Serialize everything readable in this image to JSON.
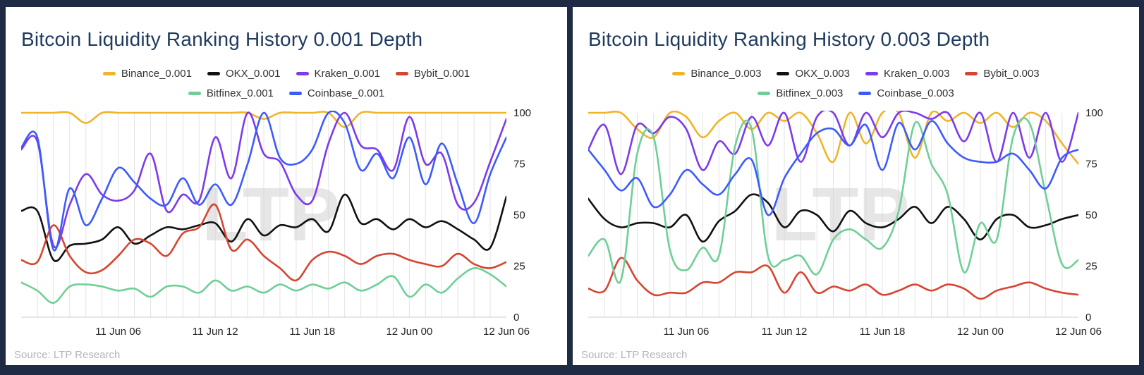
{
  "source_label": "Source: LTP Research",
  "watermark": "LTP",
  "chart_data": [
    {
      "type": "line",
      "title": "Bitcoin Liquidity Ranking History 0.001 Depth",
      "x": [
        "11 Jun 00",
        "11 Jun 01",
        "11 Jun 02",
        "11 Jun 03",
        "11 Jun 04",
        "11 Jun 05",
        "11 Jun 06",
        "11 Jun 07",
        "11 Jun 08",
        "11 Jun 09",
        "11 Jun 10",
        "11 Jun 11",
        "11 Jun 12",
        "11 Jun 13",
        "11 Jun 14",
        "11 Jun 15",
        "11 Jun 16",
        "11 Jun 17",
        "11 Jun 18",
        "11 Jun 19",
        "11 Jun 20",
        "11 Jun 21",
        "11 Jun 22",
        "11 Jun 23",
        "12 Jun 00",
        "12 Jun 01",
        "12 Jun 02",
        "12 Jun 03",
        "12 Jun 04",
        "12 Jun 05",
        "12 Jun 06"
      ],
      "x_ticks": [
        "11 Jun 06",
        "11 Jun 12",
        "11 Jun 18",
        "12 Jun 00",
        "12 Jun 06"
      ],
      "ylim": [
        0,
        100
      ],
      "y_ticks": [
        0,
        25,
        50,
        75,
        100
      ],
      "series": [
        {
          "name": "Binance_0.001",
          "color": "#f0b429",
          "values": [
            100,
            100,
            100,
            100,
            95,
            100,
            100,
            100,
            100,
            100,
            100,
            100,
            100,
            100,
            100,
            97,
            100,
            100,
            100,
            100,
            93,
            100,
            100,
            100,
            100,
            100,
            100,
            100,
            100,
            100,
            100
          ]
        },
        {
          "name": "OKX_0.001",
          "color": "#111111",
          "values": [
            52,
            52,
            28,
            35,
            36,
            38,
            44,
            36,
            40,
            44,
            43,
            45,
            46,
            37,
            48,
            40,
            45,
            44,
            48,
            42,
            60,
            46,
            48,
            43,
            48,
            44,
            47,
            43,
            38,
            34,
            59
          ]
        },
        {
          "name": "Kraken_0.001",
          "color": "#7c3aed",
          "values": [
            82,
            86,
            35,
            55,
            70,
            60,
            57,
            62,
            80,
            52,
            60,
            57,
            88,
            68,
            100,
            80,
            76,
            60,
            57,
            85,
            100,
            84,
            82,
            72,
            98,
            75,
            80,
            55,
            56,
            76,
            97
          ]
        },
        {
          "name": "Bybit_0.001",
          "color": "#d64531",
          "values": [
            28,
            27,
            45,
            30,
            22,
            23,
            30,
            38,
            36,
            30,
            41,
            44,
            55,
            33,
            38,
            30,
            24,
            18,
            28,
            32,
            30,
            26,
            30,
            31,
            28,
            26,
            25,
            31,
            26,
            24,
            27
          ]
        },
        {
          "name": "Bitfinex_0.001",
          "color": "#6fcf97",
          "values": [
            17,
            13,
            7,
            15,
            16,
            15,
            13,
            14,
            10,
            15,
            15,
            12,
            18,
            13,
            15,
            12,
            16,
            13,
            16,
            14,
            17,
            13,
            16,
            20,
            10,
            16,
            12,
            19,
            24,
            21,
            15
          ]
        },
        {
          "name": "Coinbase_0.001",
          "color": "#3b5bfd",
          "values": [
            83,
            88,
            33,
            63,
            45,
            58,
            73,
            66,
            58,
            55,
            68,
            55,
            65,
            55,
            75,
            100,
            78,
            75,
            82,
            100,
            95,
            72,
            80,
            68,
            88,
            65,
            85,
            65,
            46,
            70,
            88
          ]
        }
      ]
    },
    {
      "type": "line",
      "title": "Bitcoin Liquidity Ranking History 0.003 Depth",
      "x": [
        "11 Jun 00",
        "11 Jun 01",
        "11 Jun 02",
        "11 Jun 03",
        "11 Jun 04",
        "11 Jun 05",
        "11 Jun 06",
        "11 Jun 07",
        "11 Jun 08",
        "11 Jun 09",
        "11 Jun 10",
        "11 Jun 11",
        "11 Jun 12",
        "11 Jun 13",
        "11 Jun 14",
        "11 Jun 15",
        "11 Jun 16",
        "11 Jun 17",
        "11 Jun 18",
        "11 Jun 19",
        "11 Jun 20",
        "11 Jun 21",
        "11 Jun 22",
        "11 Jun 23",
        "12 Jun 00",
        "12 Jun 01",
        "12 Jun 02",
        "12 Jun 03",
        "12 Jun 04",
        "12 Jun 05",
        "12 Jun 06"
      ],
      "x_ticks": [
        "11 Jun 06",
        "11 Jun 12",
        "11 Jun 18",
        "12 Jun 00",
        "12 Jun 06"
      ],
      "ylim": [
        0,
        100
      ],
      "y_ticks": [
        0,
        25,
        50,
        75,
        100
      ],
      "series": [
        {
          "name": "Binance_0.003",
          "color": "#f0b429",
          "values": [
            100,
            100,
            100,
            92,
            88,
            100,
            98,
            88,
            96,
            100,
            92,
            100,
            96,
            100,
            90,
            76,
            100,
            85,
            100,
            100,
            78,
            100,
            96,
            100,
            95,
            100,
            93,
            100,
            96,
            85,
            75
          ]
        },
        {
          "name": "OKX_0.003",
          "color": "#111111",
          "values": [
            58,
            48,
            44,
            46,
            46,
            44,
            50,
            37,
            47,
            52,
            60,
            56,
            44,
            52,
            50,
            42,
            52,
            46,
            44,
            48,
            54,
            46,
            54,
            48,
            38,
            48,
            50,
            44,
            45,
            48,
            50
          ]
        },
        {
          "name": "Kraken_0.003",
          "color": "#7c3aed",
          "values": [
            82,
            94,
            70,
            94,
            90,
            98,
            92,
            72,
            86,
            80,
            98,
            84,
            100,
            76,
            98,
            100,
            84,
            100,
            88,
            100,
            100,
            97,
            100,
            86,
            100,
            76,
            100,
            78,
            100,
            76,
            100
          ]
        },
        {
          "name": "Bybit_0.003",
          "color": "#d64531",
          "values": [
            14,
            13,
            29,
            18,
            11,
            12,
            12,
            17,
            17,
            22,
            22,
            25,
            12,
            22,
            12,
            15,
            13,
            16,
            11,
            13,
            16,
            13,
            16,
            14,
            9,
            13,
            15,
            17,
            14,
            12,
            11
          ]
        },
        {
          "name": "Bitfinex_0.003",
          "color": "#6fcf97",
          "values": [
            30,
            38,
            18,
            80,
            88,
            33,
            23,
            34,
            30,
            84,
            92,
            30,
            28,
            30,
            21,
            38,
            43,
            38,
            34,
            52,
            95,
            75,
            60,
            22,
            46,
            38,
            88,
            95,
            60,
            26,
            28
          ]
        },
        {
          "name": "Coinbase_0.003",
          "color": "#3b5bfd",
          "values": [
            82,
            72,
            62,
            68,
            54,
            60,
            72,
            65,
            60,
            70,
            77,
            50,
            68,
            80,
            90,
            92,
            84,
            94,
            72,
            95,
            82,
            96,
            85,
            78,
            76,
            76,
            80,
            72,
            63,
            78,
            82
          ]
        }
      ]
    }
  ]
}
